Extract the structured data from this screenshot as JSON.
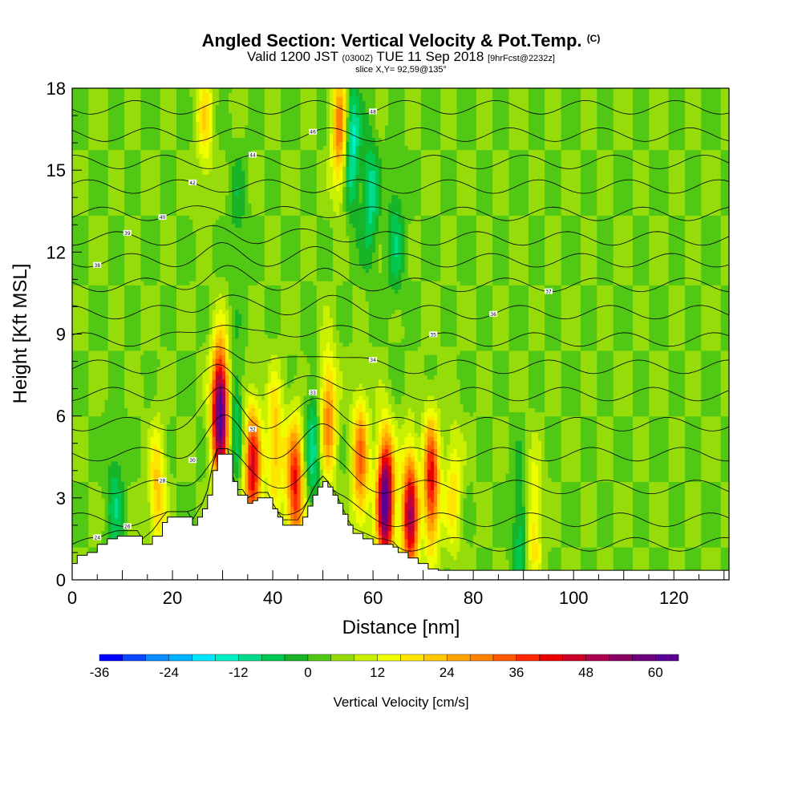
{
  "header": {
    "title_main": "Angled Section: Vertical Velocity & Pot.Temp.",
    "title_units": "(C)",
    "valid_prefix": "Valid 1200 JST",
    "valid_utc": "(0300Z)",
    "valid_date": "TUE 11 Sep 2018",
    "forecast": "[9hrFcst@2232z]",
    "slice": "slice X,Y= 92,59@135°"
  },
  "chart_data": {
    "type": "heatmap",
    "xlabel": "Distance [nm]",
    "ylabel": "Height [Kft MSL]",
    "xlim": [
      0,
      131
    ],
    "ylim": [
      0,
      18
    ],
    "x_ticks": [
      0,
      20,
      40,
      60,
      80,
      100,
      120
    ],
    "y_ticks": [
      0,
      3,
      6,
      9,
      12,
      15,
      18
    ],
    "x_tick_labels": [
      "0",
      "20",
      "40",
      "60",
      "80",
      "100",
      "120"
    ],
    "y_tick_labels": [
      "0",
      "3",
      "6",
      "9",
      "12",
      "15",
      "18"
    ],
    "colorbar": {
      "title": "Vertical Velocity [cm/s]",
      "min": -36,
      "max": 68,
      "step": 4,
      "tick_values": [
        -36,
        -24,
        -12,
        0,
        12,
        24,
        36,
        48,
        60
      ],
      "tick_labels": [
        "-36",
        "-24",
        "-12",
        "0",
        "12",
        "24",
        "36",
        "48",
        "60"
      ],
      "colors": [
        "#0000ff",
        "#0a47ff",
        "#0a8cff",
        "#00b4ff",
        "#00e6ff",
        "#00f0c8",
        "#00dc8c",
        "#00c850",
        "#18b428",
        "#50c814",
        "#96dc0a",
        "#c8f000",
        "#f0ff00",
        "#ffe600",
        "#ffc800",
        "#ffa500",
        "#ff8200",
        "#ff5a00",
        "#ff2800",
        "#eb0000",
        "#cd0028",
        "#af0050",
        "#8c0064",
        "#6e007d",
        "#5a0096"
      ]
    },
    "terrain": [
      [
        0,
        0.6
      ],
      [
        1,
        0.9
      ],
      [
        3,
        1.0
      ],
      [
        5,
        1.3
      ],
      [
        7,
        1.5
      ],
      [
        9,
        1.6
      ],
      [
        13,
        1.6
      ],
      [
        14,
        1.3
      ],
      [
        16,
        1.6
      ],
      [
        18,
        2.1
      ],
      [
        19,
        2.3
      ],
      [
        23,
        2.3
      ],
      [
        24,
        2.0
      ],
      [
        25,
        2.3
      ],
      [
        26,
        2.6
      ],
      [
        27,
        3.1
      ],
      [
        28,
        4.0
      ],
      [
        29,
        4.6
      ],
      [
        31,
        4.6
      ],
      [
        32,
        3.6
      ],
      [
        33,
        3.1
      ],
      [
        34,
        3.1
      ],
      [
        35,
        2.8
      ],
      [
        36,
        2.9
      ],
      [
        37,
        3.0
      ],
      [
        39,
        3.0
      ],
      [
        40,
        2.6
      ],
      [
        41,
        2.3
      ],
      [
        42,
        2.0
      ],
      [
        45,
        2.0
      ],
      [
        46,
        2.3
      ],
      [
        47,
        2.7
      ],
      [
        48,
        3.1
      ],
      [
        49,
        3.4
      ],
      [
        50,
        3.6
      ],
      [
        51,
        3.4
      ],
      [
        52,
        3.1
      ],
      [
        53,
        2.8
      ],
      [
        54,
        2.4
      ],
      [
        55,
        2.0
      ],
      [
        56,
        1.7
      ],
      [
        58,
        1.5
      ],
      [
        60,
        1.3
      ],
      [
        62,
        1.3
      ],
      [
        64,
        1.2
      ],
      [
        65,
        1.0
      ],
      [
        67,
        0.8
      ],
      [
        69,
        0.6
      ],
      [
        71,
        0.4
      ],
      [
        73,
        0.35
      ],
      [
        131,
        0.35
      ]
    ],
    "updrafts": [
      {
        "x": 29.5,
        "z": 6.2,
        "w": 62
      },
      {
        "x": 62.5,
        "z": 2.9,
        "w": 60
      },
      {
        "x": 67.5,
        "z": 2.4,
        "w": 48
      },
      {
        "x": 36.0,
        "z": 4.0,
        "w": 40
      },
      {
        "x": 44.5,
        "z": 3.4,
        "w": 38
      },
      {
        "x": 51.0,
        "z": 6.0,
        "w": 26
      },
      {
        "x": 53.5,
        "z": 16.5,
        "w": 30
      },
      {
        "x": 71.5,
        "z": 3.5,
        "w": 40
      },
      {
        "x": 57.5,
        "z": 4.3,
        "w": 28
      },
      {
        "x": 40.5,
        "z": 5.0,
        "w": 20
      },
      {
        "x": 17.0,
        "z": 3.2,
        "w": 18
      },
      {
        "x": 26.5,
        "z": 17.0,
        "w": 14
      },
      {
        "x": 92.0,
        "z": 2.0,
        "w": 16
      },
      {
        "x": 76.0,
        "z": 3.3,
        "w": 14
      }
    ],
    "downdrafts": [
      {
        "x": 55.5,
        "z": 16.0,
        "w": -22
      },
      {
        "x": 59.5,
        "z": 14.0,
        "w": -14
      },
      {
        "x": 32.5,
        "z": 6.0,
        "w": -12
      },
      {
        "x": 48.0,
        "z": 4.8,
        "w": -14
      },
      {
        "x": 64.5,
        "z": 12.5,
        "w": -10
      },
      {
        "x": 8.5,
        "z": 2.8,
        "w": -10
      },
      {
        "x": 89.5,
        "z": 1.8,
        "w": -12
      },
      {
        "x": 69.5,
        "z": 2.8,
        "w": -8
      },
      {
        "x": 33.0,
        "z": 13.5,
        "w": -6
      }
    ],
    "isentropes": [
      {
        "z": 1.3,
        "label": "24"
      },
      {
        "z": 2.2,
        "label": "26"
      },
      {
        "z": 3.4,
        "label": "28"
      },
      {
        "z": 4.6,
        "label": "30"
      },
      {
        "z": 5.7,
        "label": "32"
      },
      {
        "z": 6.8,
        "label": "33"
      },
      {
        "z": 7.8,
        "label": "34"
      },
      {
        "z": 8.8,
        "label": "35"
      },
      {
        "z": 9.8,
        "label": "36"
      },
      {
        "z": 10.8,
        "label": "37"
      },
      {
        "z": 11.7,
        "label": "38"
      },
      {
        "z": 12.5,
        "label": "39"
      },
      {
        "z": 13.4,
        "label": "40"
      },
      {
        "z": 14.4,
        "label": "42"
      },
      {
        "z": 15.3,
        "label": "44"
      },
      {
        "z": 16.3,
        "label": "46"
      },
      {
        "z": 17.3,
        "label": "48"
      }
    ]
  }
}
